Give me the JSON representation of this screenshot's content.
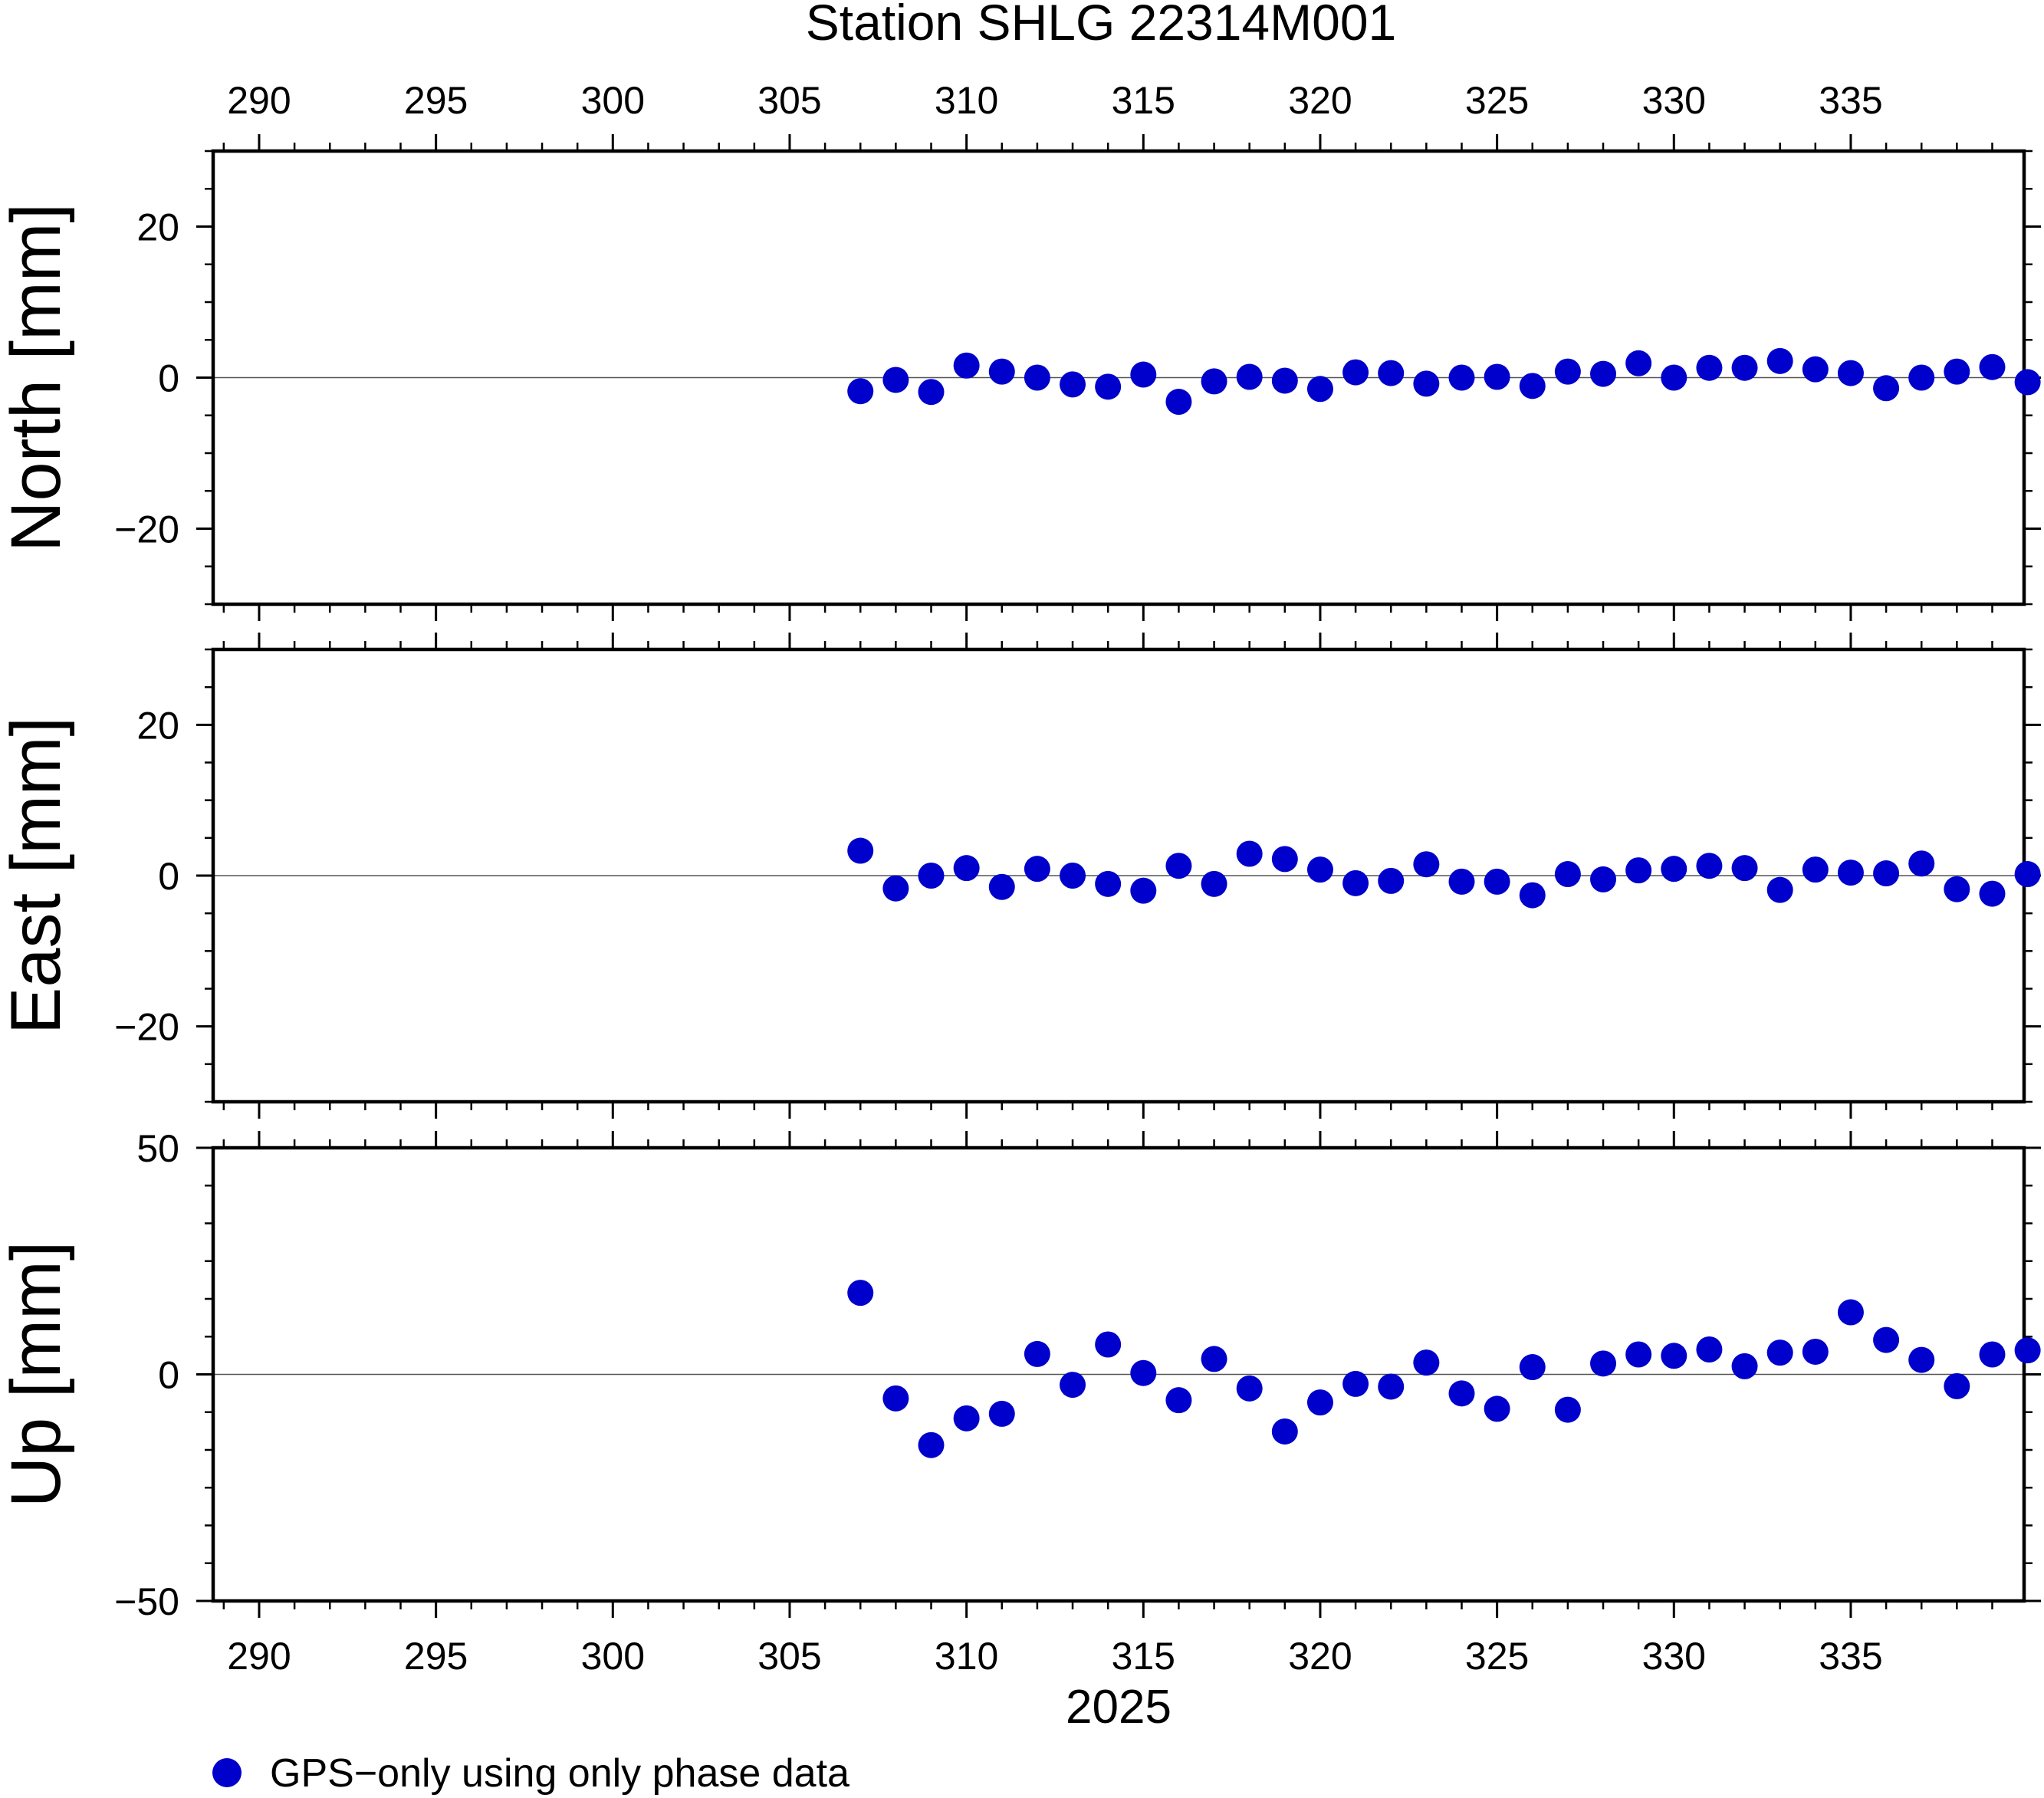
{
  "chart_data": {
    "type": "scatter",
    "title": "Station SHLG 22314M001",
    "xlabel": "2025",
    "xlim": [
      288.7,
      339.9
    ],
    "xticks": [
      290,
      295,
      300,
      305,
      310,
      315,
      320,
      325,
      330,
      335
    ],
    "x": [
      307,
      308,
      309,
      310,
      311,
      312,
      313,
      314,
      315,
      316,
      317,
      318,
      319,
      320,
      321,
      322,
      323,
      324,
      325,
      326,
      327,
      328,
      329,
      330,
      331,
      332,
      333,
      334,
      335,
      336,
      337,
      338,
      339,
      340
    ],
    "legend": {
      "label": "GPS−only using only phase data",
      "color": "#0000cc",
      "position": "bottom-left"
    },
    "panels": [
      {
        "ylabel": "North [mm]",
        "ylim": [
          -30,
          30
        ],
        "yticks": [
          20,
          0,
          -20
        ],
        "ytick_labels": [
          "20",
          "0",
          "−20"
        ],
        "values": [
          -1.8,
          -0.3,
          -1.9,
          1.6,
          0.8,
          0.0,
          -0.9,
          -1.2,
          0.4,
          -3.2,
          -0.5,
          0.1,
          -0.4,
          -1.5,
          0.7,
          0.6,
          -0.8,
          0.0,
          0.1,
          -1.1,
          0.8,
          0.5,
          1.9,
          0.0,
          1.3,
          1.3,
          2.2,
          1.1,
          0.6,
          -1.4,
          0.0,
          0.8,
          1.4,
          -0.6
        ]
      },
      {
        "ylabel": "East [mm]",
        "ylim": [
          -30,
          30
        ],
        "yticks": [
          20,
          0,
          -20
        ],
        "ytick_labels": [
          "20",
          "0",
          "−20"
        ],
        "values": [
          3.3,
          -1.7,
          0.0,
          1.0,
          -1.5,
          0.9,
          0.0,
          -1.1,
          -2.0,
          1.3,
          -1.1,
          2.9,
          2.2,
          0.8,
          -1.0,
          -0.7,
          1.5,
          -0.8,
          -0.8,
          -2.6,
          0.2,
          -0.5,
          0.7,
          0.9,
          1.3,
          1.0,
          -1.9,
          0.8,
          0.4,
          0.3,
          1.6,
          -1.8,
          -2.4,
          0.2
        ]
      },
      {
        "ylabel": "Up [mm]",
        "ylim": [
          -50,
          50
        ],
        "yticks": [
          50,
          0,
          -50
        ],
        "ytick_labels": [
          "50",
          "0",
          "−50"
        ],
        "values": [
          18.0,
          -5.3,
          -15.6,
          -9.7,
          -8.7,
          4.5,
          -2.3,
          6.6,
          0.3,
          -5.7,
          3.4,
          -3.1,
          -12.6,
          -6.2,
          -2.1,
          -2.7,
          2.6,
          -4.2,
          -7.6,
          1.6,
          -7.8,
          2.4,
          4.4,
          4.1,
          5.5,
          1.8,
          4.8,
          5.0,
          13.7,
          7.6,
          3.2,
          -2.6,
          4.4,
          5.3
        ]
      }
    ],
    "reference_line": 0,
    "grid": false
  }
}
